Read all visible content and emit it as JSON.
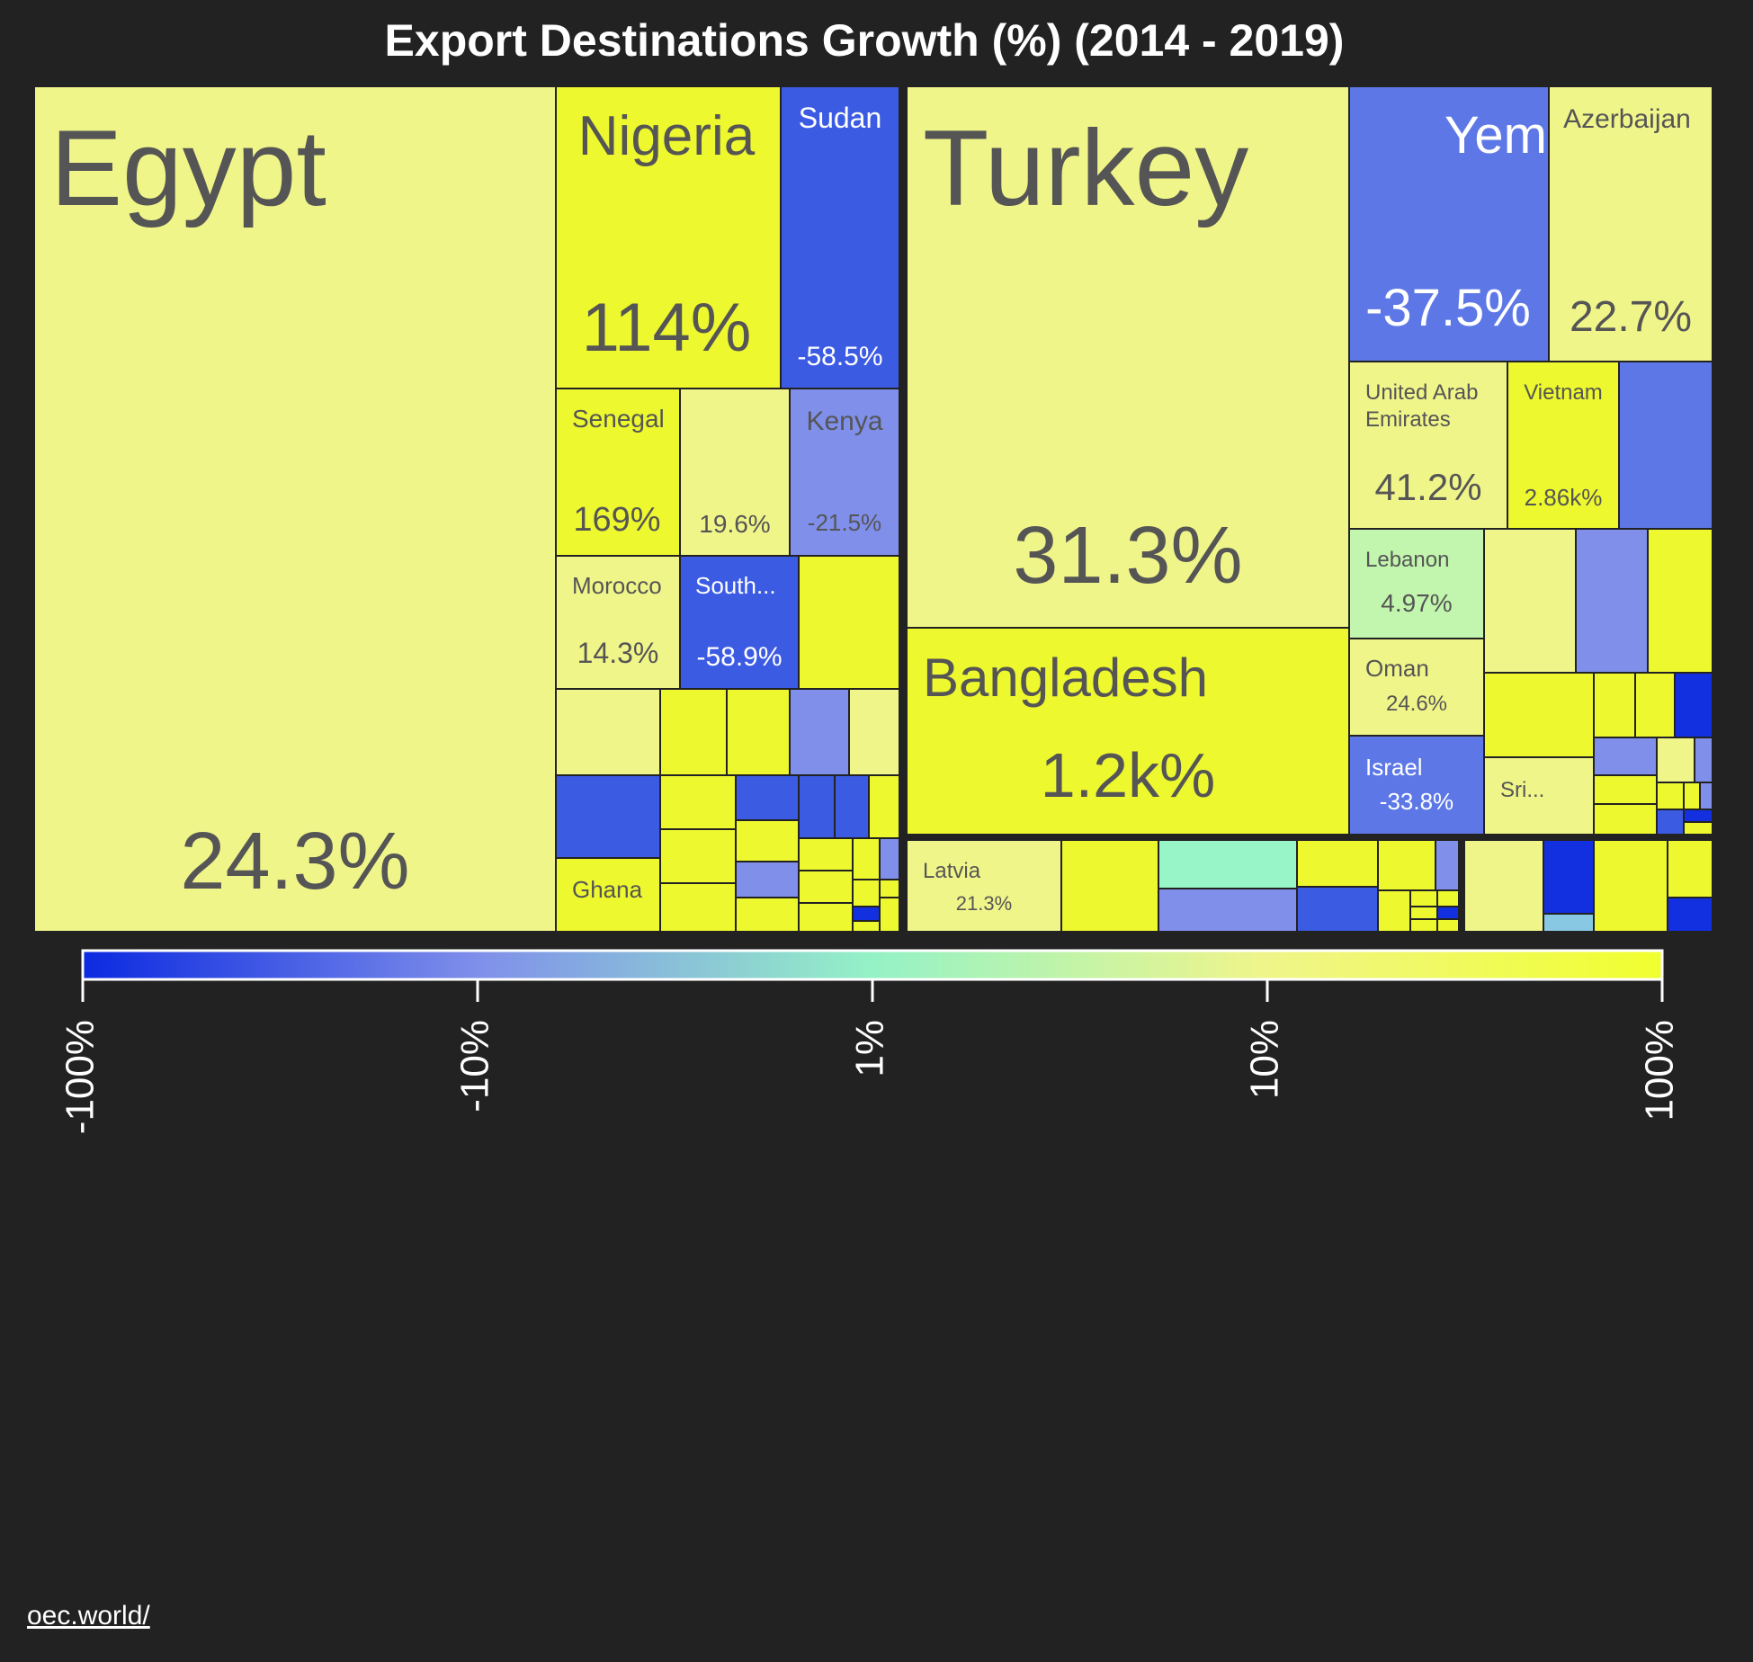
{
  "source_link": "oec.world/",
  "chart_data": {
    "type": "treemap",
    "title": "Export Destinations Growth (%) (2014 - 2019)",
    "value_unit": "%",
    "colorscale": {
      "colors": [
        "#0c2ae0",
        "#7f8fea",
        "#94f2c6",
        "#f0f58a",
        "#f0ff2e"
      ],
      "tick_labels": [
        "-100%",
        "-10%",
        "1%",
        "10%",
        "100%"
      ]
    },
    "colors": {
      "yellow": "#eef82e",
      "pale_yellow": "#f0f58a",
      "blue": "#3c5be3",
      "mid_blue": "#5d78e6",
      "light_blue": "#7f8fea",
      "deep_blue": "#1330e0",
      "mint": "#97f5c8",
      "light_green": "#c2f5ae",
      "teal_blue": "#88c8e3"
    },
    "tiles": [
      {
        "name": "Egypt",
        "label": "24.3%",
        "growth": 24.3
      },
      {
        "name": "Nigeria",
        "label": "114%",
        "growth": 114
      },
      {
        "name": "Sudan",
        "label": "-58.5%",
        "growth": -58.5
      },
      {
        "name": "Senegal",
        "label": "169%",
        "growth": 169
      },
      {
        "name": "",
        "label": "19.6%",
        "growth": 19.6
      },
      {
        "name": "Kenya",
        "label": "-21.5%",
        "growth": -21.5
      },
      {
        "name": "Morocco",
        "label": "14.3%",
        "growth": 14.3
      },
      {
        "name": "South...",
        "label": "-58.9%",
        "growth": -58.9
      },
      {
        "name": "Ghana",
        "label": "",
        "growth": null
      },
      {
        "name": "Turkey",
        "label": "31.3%",
        "growth": 31.3
      },
      {
        "name": "Bangladesh",
        "label": "1.2k%",
        "growth": 1200
      },
      {
        "name": "Yemen",
        "label": "-37.5%",
        "growth": -37.5
      },
      {
        "name": "Azerbaijan",
        "label": "22.7%",
        "growth": 22.7
      },
      {
        "name": "United Arab Emirates",
        "label": "41.2%",
        "growth": 41.2
      },
      {
        "name": "Vietnam",
        "label": "2.86k%",
        "growth": 2860
      },
      {
        "name": "Lebanon",
        "label": "4.97%",
        "growth": 4.97
      },
      {
        "name": "Oman",
        "label": "24.6%",
        "growth": 24.6
      },
      {
        "name": "Israel",
        "label": "-33.8%",
        "growth": -33.8
      },
      {
        "name": "Sri...",
        "label": "",
        "growth": null
      },
      {
        "name": "Latvia",
        "label": "21.3%",
        "growth": 21.3
      }
    ]
  }
}
